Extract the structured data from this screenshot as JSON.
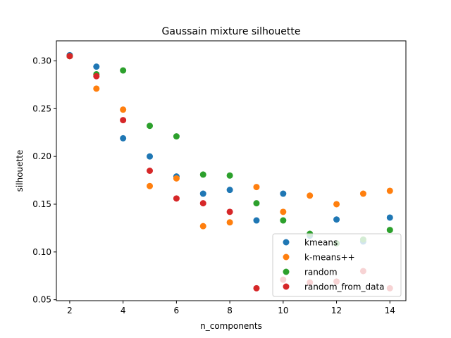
{
  "chart_data": {
    "type": "scatter",
    "title": "Gaussain mixture silhouette",
    "xlabel": "n_components",
    "ylabel": "silhouette",
    "xlim": [
      1.5,
      14.6
    ],
    "ylim": [
      0.049,
      0.321
    ],
    "xticks": [
      2,
      4,
      6,
      8,
      10,
      12,
      14
    ],
    "yticks": [
      0.05,
      0.1,
      0.15,
      0.2,
      0.25,
      0.3
    ],
    "ytick_labels": [
      "0.05",
      "0.10",
      "0.15",
      "0.20",
      "0.25",
      "0.30"
    ],
    "grid": false,
    "legend_position": "lower-right",
    "series": [
      {
        "name": "kmeans",
        "color": "#1f77b4",
        "x": [
          2,
          3,
          4,
          5,
          6,
          7,
          8,
          9,
          10,
          11,
          12,
          13,
          14
        ],
        "y": [
          0.306,
          0.294,
          0.219,
          0.2,
          0.179,
          0.161,
          0.165,
          0.133,
          0.161,
          0.117,
          0.134,
          0.111,
          0.136
        ]
      },
      {
        "name": "k-means++",
        "color": "#ff7f0e",
        "x": [
          2,
          3,
          4,
          5,
          6,
          7,
          8,
          9,
          10,
          11,
          12,
          13,
          14
        ],
        "y": [
          0.305,
          0.271,
          0.249,
          0.169,
          0.177,
          0.127,
          0.131,
          0.168,
          0.142,
          0.159,
          0.15,
          0.161,
          0.164
        ]
      },
      {
        "name": "random",
        "color": "#2ca02c",
        "x": [
          2,
          3,
          4,
          5,
          6,
          7,
          8,
          9,
          10,
          11,
          12,
          13,
          14
        ],
        "y": [
          0.305,
          0.286,
          0.29,
          0.232,
          0.221,
          0.181,
          0.18,
          0.151,
          0.133,
          0.119,
          0.109,
          0.113,
          0.123
        ]
      },
      {
        "name": "random_from_data",
        "color": "#d62728",
        "x": [
          2,
          3,
          4,
          5,
          6,
          7,
          8,
          9,
          10,
          11,
          12,
          13,
          14
        ],
        "y": [
          0.305,
          0.284,
          0.238,
          0.185,
          0.156,
          0.151,
          0.142,
          0.062,
          0.071,
          0.068,
          0.069,
          0.08,
          0.062
        ]
      }
    ]
  }
}
